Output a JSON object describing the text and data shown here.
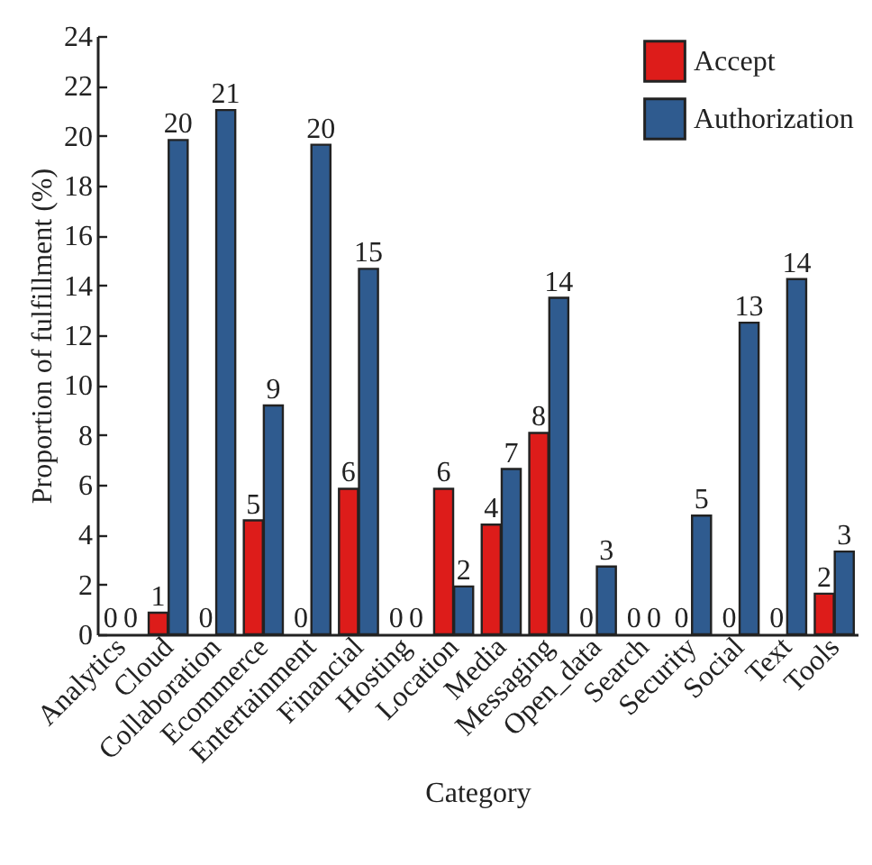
{
  "chart_data": {
    "type": "bar",
    "xlabel": "Category",
    "ylabel": "Proportion of fulfillment (%)",
    "categories": [
      "Analytics",
      "Cloud",
      "Collaboration",
      "Ecommerce",
      "Entertainment",
      "Financial",
      "Hosting",
      "Location",
      "Media",
      "Messaging",
      "Open_data",
      "Search",
      "Security",
      "Social",
      "Text",
      "Tools"
    ],
    "series": [
      {
        "name": "Accept",
        "color": "#dd1c1a",
        "values": [
          0,
          0.87,
          0,
          4.57,
          0,
          5.84,
          0,
          5.84,
          4.4,
          8.08,
          0,
          0,
          0,
          0,
          0,
          1.63
        ],
        "value_labels": [
          "0",
          "1",
          "0",
          "5",
          "0",
          "6",
          "0",
          "6",
          "4",
          "8",
          "0",
          "0",
          "0",
          "0",
          "0",
          "2"
        ]
      },
      {
        "name": "Authorization",
        "color": "#2f5b8f",
        "values": [
          0,
          19.83,
          21.03,
          9.18,
          19.64,
          14.66,
          0,
          1.92,
          6.63,
          13.5,
          2.72,
          0,
          4.76,
          12.5,
          14.25,
          3.32
        ],
        "value_labels": [
          "0",
          "20",
          "21",
          "9",
          "20",
          "15",
          "0",
          "2",
          "7",
          "14",
          "3",
          "0",
          "5",
          "13",
          "14",
          "3"
        ]
      }
    ],
    "ylim": [
      0,
      24
    ],
    "yticks": [
      0,
      2,
      4,
      6,
      8,
      10,
      12,
      14,
      16,
      18,
      20,
      22,
      24
    ],
    "grid": false,
    "legend": "top right"
  }
}
